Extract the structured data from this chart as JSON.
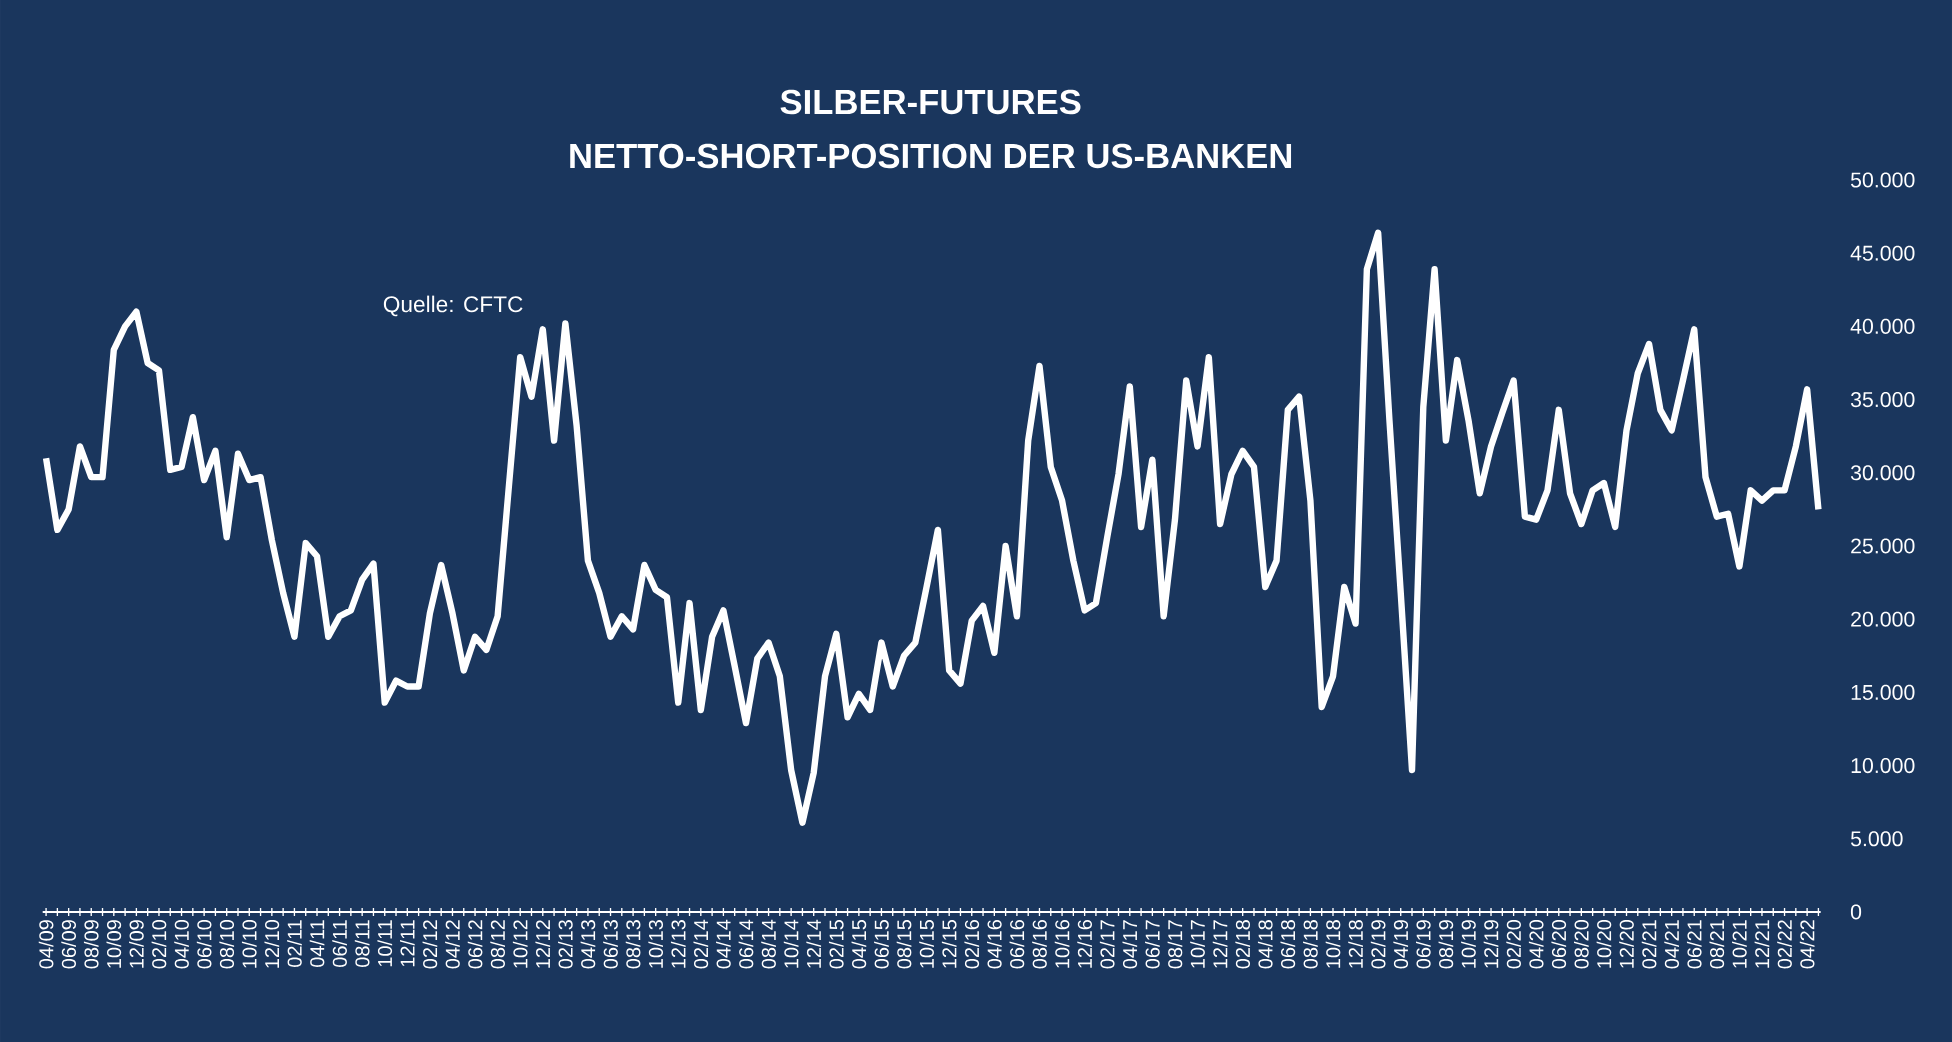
{
  "chart_data": {
    "type": "line",
    "title": "SILBER-FUTURES",
    "subtitle": "NETTO-SHORT-POSITION DER US-BANKEN",
    "annotations": [
      "Quelle: CFTC"
    ],
    "categories": [
      "04/09",
      null,
      "06/09",
      null,
      "08/09",
      null,
      "10/09",
      null,
      "12/09",
      null,
      "02/10",
      null,
      "04/10",
      null,
      "06/10",
      null,
      "08/10",
      null,
      "10/10",
      null,
      "12/10",
      null,
      "02/11",
      null,
      "04/11",
      null,
      "06/11",
      null,
      "08/11",
      null,
      "10/11",
      null,
      "12/11",
      null,
      "02/12",
      null,
      "04/12",
      null,
      "06/12",
      null,
      "08/12",
      null,
      "10/12",
      null,
      "12/12",
      null,
      "02/13",
      null,
      "04/13",
      null,
      "06/13",
      null,
      "08/13",
      null,
      "10/13",
      null,
      "12/13",
      null,
      "02/14",
      null,
      "04/14",
      null,
      "06/14",
      null,
      "08/14",
      null,
      "10/14",
      null,
      "12/14",
      null,
      "02/15",
      null,
      "04/15",
      null,
      "06/15",
      null,
      "08/15",
      null,
      "10/15",
      null,
      "12/15",
      null,
      "02/16",
      null,
      "04/16",
      null,
      "06/16",
      null,
      "08/16",
      null,
      "10/16",
      null,
      "12/16",
      null,
      "02/17",
      null,
      "04/17",
      null,
      "06/17",
      null,
      "08/17",
      null,
      "10/17",
      null,
      "12/17",
      null,
      "02/18",
      null,
      "04/18",
      null,
      "06/18",
      null,
      "08/18",
      null,
      "10/18",
      null,
      "12/18",
      null,
      "02/19",
      null,
      "04/19",
      null,
      "06/19",
      null,
      "08/19",
      null,
      "10/19",
      null,
      "12/19",
      null,
      "02/20",
      null,
      "04/20",
      null,
      "06/20",
      null,
      "08/20",
      null,
      "10/20",
      null,
      "12/20",
      null,
      "02/21",
      null,
      "04/21",
      null,
      "06/21",
      null,
      "08/21",
      null,
      "10/21",
      null,
      "12/21",
      null,
      "02/22",
      null,
      "04/22",
      null
    ],
    "series": [
      {
        "color": "#ffffff",
        "values": [
          31000,
          26100,
          27500,
          31800,
          29700,
          29700,
          38400,
          40000,
          41000,
          37500,
          37000,
          30200,
          30400,
          33800,
          29500,
          31500,
          25600,
          31300,
          29500,
          29700,
          25400,
          21800,
          18800,
          25200,
          24300,
          18800,
          20200,
          20600,
          22700,
          23800,
          14300,
          15800,
          15400,
          15400,
          20400,
          23700,
          20400,
          16500,
          18800,
          17900,
          20200,
          29100,
          37900,
          35200,
          39800,
          32200,
          40200,
          33200,
          24000,
          21800,
          18800,
          20200,
          19300,
          23700,
          22000,
          21500,
          14300,
          21100,
          13800,
          18800,
          20600,
          16800,
          12900,
          17300,
          18400,
          16100,
          9700,
          6100,
          9500,
          16100,
          19000,
          13300,
          14900,
          13800,
          18400,
          15400,
          17500,
          18400,
          22200,
          26100,
          16500,
          15600,
          19900,
          20900,
          17700,
          25000,
          20200,
          32200,
          37300,
          30400,
          28100,
          24000,
          20600,
          21100,
          25600,
          29900,
          35900,
          26300,
          30900,
          20200,
          26800,
          36300,
          31800,
          37900,
          26500,
          29900,
          31500,
          30400,
          22200,
          24000,
          34300,
          35200,
          28100,
          14000,
          16100,
          22200,
          19700,
          43900,
          46400,
          33600,
          21800,
          9700,
          34500,
          43900,
          32200,
          37700,
          33600,
          28600,
          31800,
          34100,
          36300,
          27000,
          26800,
          28800,
          34300,
          28600,
          26500,
          28800,
          29300,
          26300,
          32900,
          36800,
          38800,
          34300,
          32900,
          36300,
          39800,
          29700,
          27000,
          27200,
          23600,
          28800,
          28100,
          28800,
          28800,
          31800,
          35700,
          27500
        ]
      }
    ],
    "ylim": [
      0,
      50000
    ],
    "yticks": [
      0,
      {
        "value": 5000,
        "label": "5.000"
      },
      {
        "value": 10000,
        "label": "10.000"
      },
      {
        "value": 15000,
        "label": "15.000"
      },
      {
        "value": 20000,
        "label": "20.000"
      },
      {
        "value": 25000,
        "label": "25.000"
      },
      {
        "value": 30000,
        "label": "30.000"
      },
      {
        "value": 35000,
        "label": "35.000"
      },
      {
        "value": 40000,
        "label": "40.000"
      },
      {
        "value": 45000,
        "label": "45.000"
      },
      {
        "value": 50000,
        "label": "50.000"
      }
    ],
    "grid": false,
    "legend": false,
    "marker": "none",
    "line_style": "solid"
  }
}
